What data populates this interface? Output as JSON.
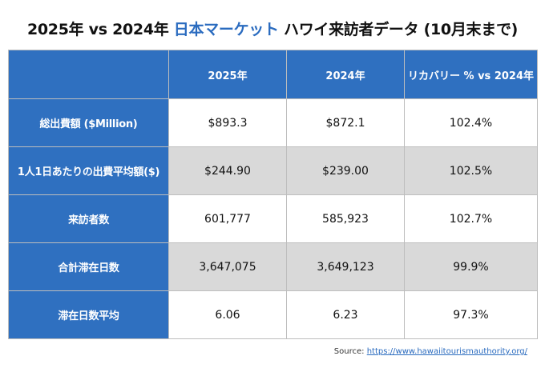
{
  "title": {
    "prefix": "2025年 vs 2024年 ",
    "accent": "日本マーケット",
    "suffix": "  ハワイ来訪者データ (10月末まで)"
  },
  "accent_color": "#2a6bbf",
  "header_color": "#2f70c0",
  "table": {
    "columns": [
      "",
      "2025年",
      "2024年",
      "リカバリー % vs 2024年"
    ],
    "rows": [
      {
        "label": "総出費額 ($Million)",
        "y2025": "$893.3",
        "y2024": "$872.1",
        "recovery": "102.4%"
      },
      {
        "label": "1人1日あたりの出費平均額($)",
        "y2025": "$244.90",
        "y2024": "$239.00",
        "recovery": "102.5%"
      },
      {
        "label": "来訪者数",
        "y2025": "601,777",
        "y2024": "585,923",
        "recovery": "102.7%"
      },
      {
        "label": "合計滞在日数",
        "y2025": "3,647,075",
        "y2024": "3,649,123",
        "recovery": "99.9%"
      },
      {
        "label": "滞在日数平均",
        "y2025": "6.06",
        "y2024": "6.23",
        "recovery": "97.3%"
      }
    ]
  },
  "source": {
    "label": "Source: ",
    "link_text": "https://www.hawaiitourismauthority.org/"
  }
}
